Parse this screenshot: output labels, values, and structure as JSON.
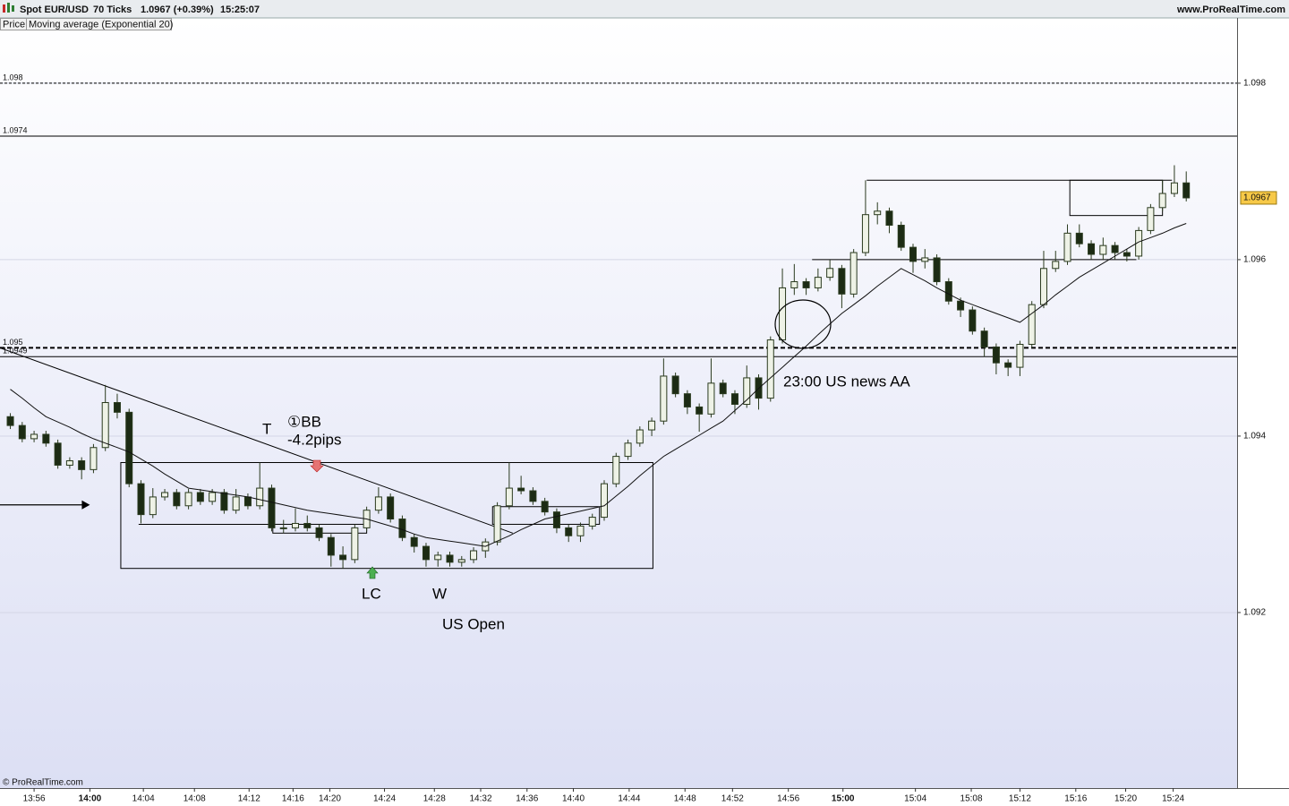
{
  "header": {
    "symbol": "Spot EUR/USD",
    "interval": "70 Ticks",
    "quote": "1.0967 (+0.39%)",
    "time": "15:25:07",
    "site": "www.ProRealTime.com"
  },
  "legend": [
    "Price",
    "Moving average (Exponential 20)"
  ],
  "footer": "© ProRealTime.com",
  "chart_data": {
    "type": "candlestick",
    "xlim": [
      -0.87,
      103.28
    ],
    "ylim": [
      1.09001,
      1.09874
    ],
    "yticks": [
      1.098,
      1.096,
      1.094,
      1.092
    ],
    "grid": true,
    "xticks": [
      {
        "value": 2,
        "label": "13:56"
      },
      {
        "value": 6.7,
        "label": "14:00",
        "major": true
      },
      {
        "value": 11.2,
        "label": "14:04"
      },
      {
        "value": 15.5,
        "label": "14:08"
      },
      {
        "value": 20.1,
        "label": "14:12"
      },
      {
        "value": 23.8,
        "label": "14:16"
      },
      {
        "value": 26.9,
        "label": "14:20"
      },
      {
        "value": 31.5,
        "label": "14:24"
      },
      {
        "value": 35.7,
        "label": "14:28"
      },
      {
        "value": 39.6,
        "label": "14:32"
      },
      {
        "value": 43.5,
        "label": "14:36"
      },
      {
        "value": 47.4,
        "label": "14:40"
      },
      {
        "value": 52.1,
        "label": "14:44"
      },
      {
        "value": 56.8,
        "label": "14:48"
      },
      {
        "value": 60.8,
        "label": "14:52"
      },
      {
        "value": 65.5,
        "label": "14:56"
      },
      {
        "value": 70.1,
        "label": "15:00",
        "major": true
      },
      {
        "value": 76.2,
        "label": "15:04"
      },
      {
        "value": 80.9,
        "label": "15:08"
      },
      {
        "value": 85.0,
        "label": "15:12"
      },
      {
        "value": 89.7,
        "label": "15:16"
      },
      {
        "value": 93.9,
        "label": "15:20"
      },
      {
        "value": 97.9,
        "label": "15:24"
      }
    ],
    "up_color": "#eef2e6",
    "down_color": "#1c2b14",
    "edge_color": "#2a3a1e",
    "ema_color": "#111111",
    "open": [
      1.09422,
      1.09412,
      1.09397,
      1.09402,
      1.09392,
      1.09367,
      1.09372,
      1.09362,
      1.09387,
      1.09438,
      1.09427,
      1.09346,
      1.09311,
      1.09331,
      1.09336,
      1.09321,
      1.09336,
      1.09326,
      1.09336,
      1.09316,
      1.09331,
      1.09321,
      1.09341,
      1.09296,
      1.09296,
      1.09301,
      1.09296,
      1.09285,
      1.09265,
      1.0926,
      1.09296,
      1.09316,
      1.09331,
      1.09306,
      1.09285,
      1.09275,
      1.0926,
      1.09265,
      1.09257,
      1.0926,
      1.0927,
      1.0928,
      1.09321,
      1.09341,
      1.09338,
      1.09326,
      1.09314,
      1.09296,
      1.09287,
      1.09298,
      1.09308,
      1.09346,
      1.09377,
      1.09392,
      1.09407,
      1.09417,
      1.09468,
      1.09448,
      1.09433,
      1.09425,
      1.0946,
      1.09448,
      1.09436,
      1.09466,
      1.09443,
      1.09509,
      1.09568,
      1.09575,
      1.09568,
      1.0958,
      1.0959,
      1.09561,
      1.09608,
      1.09651,
      1.09655,
      1.09639,
      1.09614,
      1.09598,
      1.09602,
      1.09575,
      1.09553,
      1.09543,
      1.09519,
      1.09501,
      1.09483,
      1.09478,
      1.09504,
      1.09549,
      1.0959,
      1.09598,
      1.0963,
      1.09618,
      1.09606,
      1.09616,
      1.09608,
      1.09604,
      1.09633,
      1.09659,
      1.09675,
      1.09687
    ],
    "high": [
      1.09426,
      1.09416,
      1.09406,
      1.09406,
      1.09396,
      1.09376,
      1.09376,
      1.09391,
      1.09458,
      1.09448,
      1.09431,
      1.0935,
      1.09341,
      1.0934,
      1.0934,
      1.0934,
      1.0934,
      1.0934,
      1.0934,
      1.0934,
      1.09335,
      1.0937,
      1.09345,
      1.09305,
      1.09318,
      1.0931,
      1.093,
      1.09289,
      1.09275,
      1.093,
      1.0932,
      1.09342,
      1.09335,
      1.0931,
      1.09289,
      1.09279,
      1.09269,
      1.09269,
      1.09264,
      1.09274,
      1.09284,
      1.09325,
      1.0937,
      1.09355,
      1.09342,
      1.0933,
      1.09318,
      1.093,
      1.09302,
      1.09312,
      1.0935,
      1.09381,
      1.09396,
      1.09411,
      1.09421,
      1.09488,
      1.09472,
      1.09452,
      1.09437,
      1.09488,
      1.09464,
      1.09452,
      1.0948,
      1.0947,
      1.09513,
      1.0959,
      1.09595,
      1.09579,
      1.0959,
      1.096,
      1.09594,
      1.09612,
      1.0969,
      1.09665,
      1.09659,
      1.09643,
      1.09618,
      1.09612,
      1.09606,
      1.09579,
      1.09557,
      1.09547,
      1.09523,
      1.09505,
      1.09487,
      1.09508,
      1.09553,
      1.0961,
      1.0961,
      1.0964,
      1.0964,
      1.09622,
      1.09625,
      1.0962,
      1.09612,
      1.09637,
      1.09663,
      1.0969,
      1.09707,
      1.097
    ],
    "low": [
      1.09408,
      1.09393,
      1.09393,
      1.09388,
      1.09363,
      1.09363,
      1.09351,
      1.09358,
      1.09383,
      1.0942,
      1.09342,
      1.09301,
      1.09307,
      1.09327,
      1.09317,
      1.09317,
      1.09322,
      1.09322,
      1.09312,
      1.09312,
      1.09317,
      1.09317,
      1.09292,
      1.0929,
      1.09292,
      1.09292,
      1.09281,
      1.09252,
      1.0925,
      1.09256,
      1.09292,
      1.09312,
      1.09302,
      1.09281,
      1.09268,
      1.09252,
      1.09252,
      1.09252,
      1.09252,
      1.09256,
      1.09262,
      1.09276,
      1.09317,
      1.09334,
      1.09322,
      1.0931,
      1.0929,
      1.0928,
      1.0928,
      1.09294,
      1.09304,
      1.09342,
      1.09373,
      1.09388,
      1.094,
      1.09413,
      1.09444,
      1.09425,
      1.09405,
      1.09421,
      1.09444,
      1.09425,
      1.09432,
      1.0943,
      1.09439,
      1.09505,
      1.0956,
      1.0956,
      1.09564,
      1.09576,
      1.09545,
      1.09557,
      1.09604,
      1.0964,
      1.0963,
      1.0961,
      1.09585,
      1.0959,
      1.09571,
      1.09549,
      1.09535,
      1.09515,
      1.0949,
      1.0947,
      1.09468,
      1.09468,
      1.095,
      1.09545,
      1.09586,
      1.09594,
      1.09614,
      1.096,
      1.096,
      1.096,
      1.09598,
      1.096,
      1.09629,
      1.09655,
      1.09671,
      1.09666
    ],
    "close": [
      1.09412,
      1.09397,
      1.09402,
      1.09392,
      1.09367,
      1.09372,
      1.09362,
      1.09387,
      1.09438,
      1.09427,
      1.09346,
      1.09311,
      1.09331,
      1.09336,
      1.09321,
      1.09336,
      1.09326,
      1.09336,
      1.09316,
      1.09331,
      1.09321,
      1.09341,
      1.09296,
      1.09296,
      1.09301,
      1.09296,
      1.09285,
      1.09265,
      1.0926,
      1.09296,
      1.09316,
      1.09331,
      1.09306,
      1.09285,
      1.09275,
      1.0926,
      1.09265,
      1.09257,
      1.0926,
      1.0927,
      1.0928,
      1.09321,
      1.09341,
      1.09338,
      1.09326,
      1.09314,
      1.09296,
      1.09287,
      1.09298,
      1.09308,
      1.09346,
      1.09377,
      1.09392,
      1.09407,
      1.09417,
      1.09468,
      1.09448,
      1.09433,
      1.09425,
      1.0946,
      1.09448,
      1.09436,
      1.09466,
      1.09443,
      1.09509,
      1.09568,
      1.09575,
      1.09568,
      1.0958,
      1.0959,
      1.09561,
      1.09608,
      1.09651,
      1.09655,
      1.09639,
      1.09614,
      1.09598,
      1.09602,
      1.09575,
      1.09553,
      1.09543,
      1.09519,
      1.09501,
      1.09483,
      1.09478,
      1.09504,
      1.09549,
      1.0959,
      1.09598,
      1.0963,
      1.09618,
      1.09606,
      1.09616,
      1.09608,
      1.09604,
      1.09633,
      1.09659,
      1.09675,
      1.09687,
      1.0967
    ],
    "ema": [
      1.09453,
      1.09443,
      1.09432,
      1.09422,
      1.09416,
      1.0941,
      1.09403,
      1.09397,
      1.09392,
      1.09387,
      1.09382,
      1.09374,
      1.09366,
      1.09357,
      1.09349,
      1.09341,
      1.09339,
      1.09337,
      1.09335,
      1.09333,
      1.09331,
      1.09328,
      1.09325,
      1.09322,
      1.09319,
      1.09316,
      1.09314,
      1.09312,
      1.0931,
      1.09308,
      1.09306,
      1.09302,
      1.09298,
      1.09294,
      1.09289,
      1.09285,
      1.09283,
      1.09281,
      1.09279,
      1.09277,
      1.09275,
      1.09281,
      1.09287,
      1.09294,
      1.093,
      1.09306,
      1.09309,
      1.09312,
      1.09315,
      1.09318,
      1.09321,
      1.09332,
      1.09343,
      1.09355,
      1.09366,
      1.09377,
      1.09385,
      1.09393,
      1.09401,
      1.09409,
      1.09417,
      1.09429,
      1.09441,
      1.09454,
      1.09466,
      1.09478,
      1.0949,
      1.09502,
      1.09515,
      1.09527,
      1.09539,
      1.09549,
      1.09559,
      1.0957,
      1.0958,
      1.0959,
      1.09583,
      1.09576,
      1.09568,
      1.09561,
      1.09554,
      1.09549,
      1.09544,
      1.09539,
      1.09534,
      1.09529,
      1.09539,
      1.09549,
      1.0956,
      1.0957,
      1.0958,
      1.09588,
      1.09596,
      1.09604,
      1.09612,
      1.0962,
      1.09625,
      1.0963,
      1.09636,
      1.09641
    ],
    "last_price": 1.0967,
    "levels": [
      {
        "value": 1.098,
        "label": "1.098",
        "style": "dashed"
      },
      {
        "value": 1.0974,
        "label": "1.0974",
        "style": "solid"
      },
      {
        "value": 1.095,
        "label": "1.095",
        "style": "bold-dashed"
      },
      {
        "value": 1.0949,
        "label": "1.0949",
        "style": "solid"
      }
    ],
    "boxes": [
      {
        "x": [
          9.3,
          54.1
        ],
        "y": [
          1.0925,
          1.0937
        ]
      },
      {
        "x": [
          22.1,
          30.0
        ],
        "y": [
          1.0929,
          1.093
        ]
      },
      {
        "x": [
          40.6,
          49.6
        ],
        "y": [
          1.093,
          1.0932
        ]
      },
      {
        "x": [
          89.2,
          97.0
        ],
        "y": [
          1.0965,
          1.0969
        ]
      }
    ],
    "segments": [
      {
        "x": [
          10.8,
          22.1
        ],
        "y": [
          1.093,
          1.093
        ]
      },
      {
        "x": [
          67.5,
          94.8
        ],
        "y": [
          1.096,
          1.096
        ]
      },
      {
        "x": [
          72.1,
          97.8
        ],
        "y": [
          1.0969,
          1.0969
        ]
      },
      {
        "x": [
          -0.87,
          42.3
        ],
        "y": [
          1.095,
          1.0929
        ]
      }
    ],
    "arrow": {
      "x": [
        -0.87,
        6.7
      ],
      "y": [
        1.09322,
        1.09322
      ]
    },
    "annotations": [
      "T",
      "①BB",
      "-4.2pips",
      "LC",
      "W",
      "US Open",
      "23:00 US news AA"
    ]
  }
}
